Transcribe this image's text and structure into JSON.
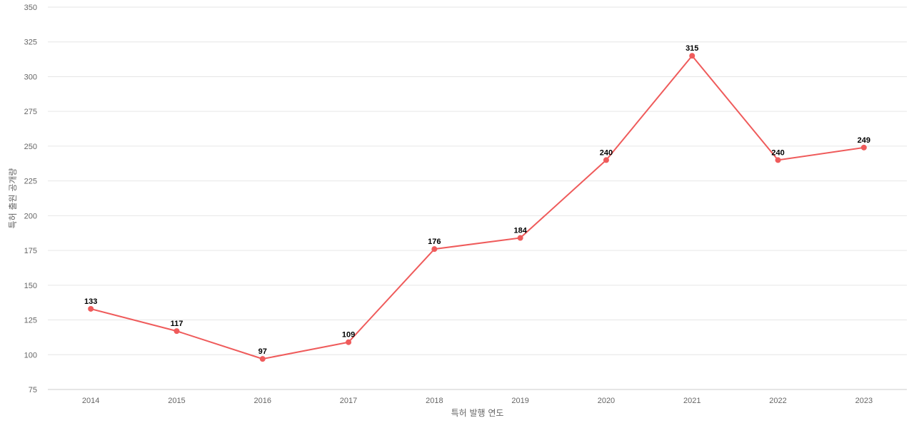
{
  "chart_data": {
    "type": "line",
    "xlabel": "특허 발행 연도",
    "ylabel": "특허 출원 공개량",
    "categories": [
      "2014",
      "2015",
      "2016",
      "2017",
      "2018",
      "2019",
      "2020",
      "2021",
      "2022",
      "2023"
    ],
    "series": [
      {
        "values": [
          133,
          117,
          97,
          109,
          176,
          184,
          240,
          315,
          240,
          249
        ]
      }
    ],
    "ylim": [
      75,
      350
    ],
    "yticks": [
      75,
      100,
      125,
      150,
      175,
      200,
      225,
      250,
      275,
      300,
      325,
      350
    ],
    "grid": true,
    "legend": "none",
    "colors": {
      "line": "#ef5b5b",
      "grid": "#e6e6e6",
      "axis": "#cccccc",
      "text": "#666666"
    }
  }
}
